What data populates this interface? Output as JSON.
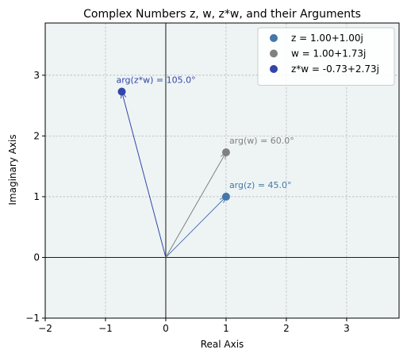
{
  "chart_data": {
    "type": "scatter",
    "title": "Complex Numbers z, w, z*w, and their Arguments",
    "xlabel": "Real Axis",
    "ylabel": "Imaginary Axis",
    "xlim": [
      -2,
      3.87
    ],
    "ylim": [
      -1,
      3.86
    ],
    "xticks": [
      -2,
      -1,
      0,
      1,
      2,
      3
    ],
    "yticks": [
      -1,
      0,
      1,
      2,
      3
    ],
    "grid": true,
    "legend_position": "top-right",
    "background_color": "#eef4f4",
    "series": [
      {
        "name": "z = 1.00+1.00j",
        "x": 1.0,
        "y": 1.0,
        "color": "#4477aa",
        "annotation": "arg(z) = 45.0°"
      },
      {
        "name": "w = 1.00+1.73j",
        "x": 1.0,
        "y": 1.73,
        "color": "#808080",
        "annotation": "arg(w) = 60.0°"
      },
      {
        "name": "z*w = -0.73+2.73j",
        "x": -0.73,
        "y": 2.73,
        "color": "#3344aa",
        "annotation": "arg(z*w) = 105.0°"
      }
    ]
  }
}
